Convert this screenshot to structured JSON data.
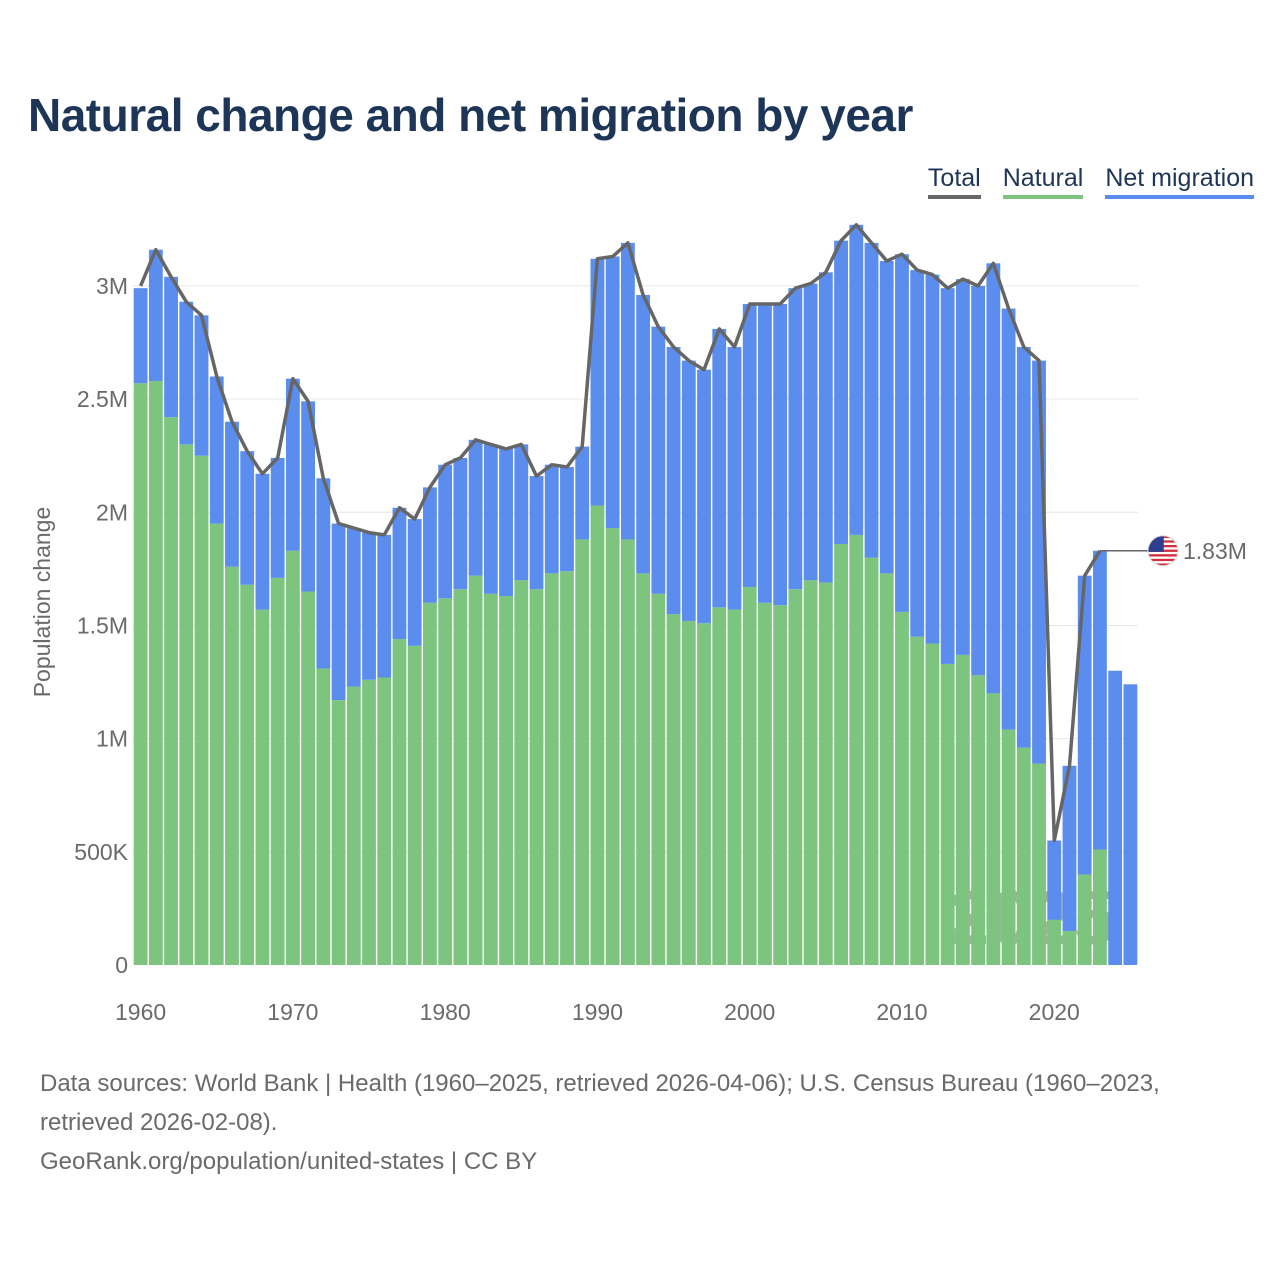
{
  "title": "Natural change and net migration by year",
  "legend": {
    "total": "Total",
    "natural": "Natural",
    "migration": "Net migration"
  },
  "colors": {
    "natural": "#7dc47e",
    "migration": "#5b8def",
    "total": "#666666",
    "title": "#1d3557",
    "grid": "#e6e6e6",
    "axis_text": "#6a6a6a",
    "watermark": "#5d6d5d"
  },
  "chart_data": {
    "type": "bar",
    "stacked": true,
    "x": [
      1960,
      1961,
      1962,
      1963,
      1964,
      1965,
      1966,
      1967,
      1968,
      1969,
      1970,
      1971,
      1972,
      1973,
      1974,
      1975,
      1976,
      1977,
      1978,
      1979,
      1980,
      1981,
      1982,
      1983,
      1984,
      1985,
      1986,
      1987,
      1988,
      1989,
      1990,
      1991,
      1992,
      1993,
      1994,
      1995,
      1996,
      1997,
      1998,
      1999,
      2000,
      2001,
      2002,
      2003,
      2004,
      2005,
      2006,
      2007,
      2008,
      2009,
      2010,
      2011,
      2012,
      2013,
      2014,
      2015,
      2016,
      2017,
      2018,
      2019,
      2020,
      2021,
      2022,
      2023,
      2024,
      2025
    ],
    "series": [
      {
        "name": "Natural",
        "values": [
          2570000,
          2580000,
          2420000,
          2300000,
          2250000,
          1950000,
          1760000,
          1680000,
          1570000,
          1710000,
          1830000,
          1650000,
          1310000,
          1170000,
          1230000,
          1260000,
          1270000,
          1440000,
          1410000,
          1600000,
          1620000,
          1660000,
          1720000,
          1640000,
          1630000,
          1700000,
          1660000,
          1730000,
          1740000,
          1880000,
          2030000,
          1930000,
          1880000,
          1730000,
          1640000,
          1550000,
          1520000,
          1510000,
          1580000,
          1570000,
          1670000,
          1600000,
          1590000,
          1660000,
          1700000,
          1690000,
          1860000,
          1900000,
          1800000,
          1730000,
          1560000,
          1450000,
          1420000,
          1330000,
          1370000,
          1280000,
          1200000,
          1040000,
          960000,
          890000,
          200000,
          150000,
          400000,
          510000,
          0,
          0
        ]
      },
      {
        "name": "Net migration",
        "values": [
          420000,
          580000,
          620000,
          630000,
          620000,
          650000,
          640000,
          590000,
          600000,
          530000,
          760000,
          840000,
          840000,
          780000,
          700000,
          650000,
          630000,
          580000,
          560000,
          510000,
          590000,
          580000,
          600000,
          660000,
          650000,
          600000,
          500000,
          480000,
          460000,
          410000,
          1090000,
          1200000,
          1310000,
          1230000,
          1180000,
          1180000,
          1150000,
          1120000,
          1230000,
          1160000,
          1250000,
          1320000,
          1330000,
          1330000,
          1310000,
          1370000,
          1340000,
          1370000,
          1390000,
          1380000,
          1580000,
          1620000,
          1630000,
          1660000,
          1660000,
          1720000,
          1900000,
          1860000,
          1770000,
          1780000,
          350000,
          730000,
          1320000,
          1320000,
          1300000,
          1240000
        ]
      }
    ],
    "total": [
      3000000,
      3160000,
      3040000,
      2930000,
      2870000,
      2600000,
      2400000,
      2270000,
      2170000,
      2240000,
      2590000,
      2490000,
      2150000,
      1950000,
      1930000,
      1910000,
      1900000,
      2020000,
      1970000,
      2110000,
      2210000,
      2240000,
      2320000,
      2300000,
      2280000,
      2300000,
      2160000,
      2210000,
      2200000,
      2290000,
      3120000,
      3130000,
      3190000,
      2960000,
      2820000,
      2730000,
      2670000,
      2630000,
      2810000,
      2730000,
      2920000,
      2920000,
      2920000,
      2990000,
      3010000,
      3060000,
      3200000,
      3270000,
      3190000,
      3110000,
      3140000,
      3070000,
      3050000,
      2990000,
      3030000,
      3000000,
      3100000,
      2900000,
      2730000,
      2670000,
      550000,
      880000,
      1720000,
      1830000
    ],
    "ylabel": "Population change",
    "ylim": [
      0,
      3300000
    ],
    "y_ticks": [
      0,
      500000,
      1000000,
      1500000,
      2000000,
      2500000,
      3000000
    ],
    "y_tick_labels": [
      "0",
      "500K",
      "1M",
      "1.5M",
      "2M",
      "2.5M",
      "3M"
    ],
    "x_ticks": [
      1960,
      1970,
      1980,
      1990,
      2000,
      2010,
      2020
    ],
    "x_tick_labels": [
      "1960",
      "1970",
      "1980",
      "1990",
      "2000",
      "2010",
      "2020"
    ],
    "end_label": "1.83M",
    "watermark": "2025",
    "grid": true
  },
  "footer": {
    "sources": "Data sources: World Bank | Health (1960–2025, retrieved 2026-04-06); U.S. Census Bureau (1960–2023, retrieved 2026-02-08).",
    "credit": "GeoRank.org/population/united-states | CC BY"
  }
}
